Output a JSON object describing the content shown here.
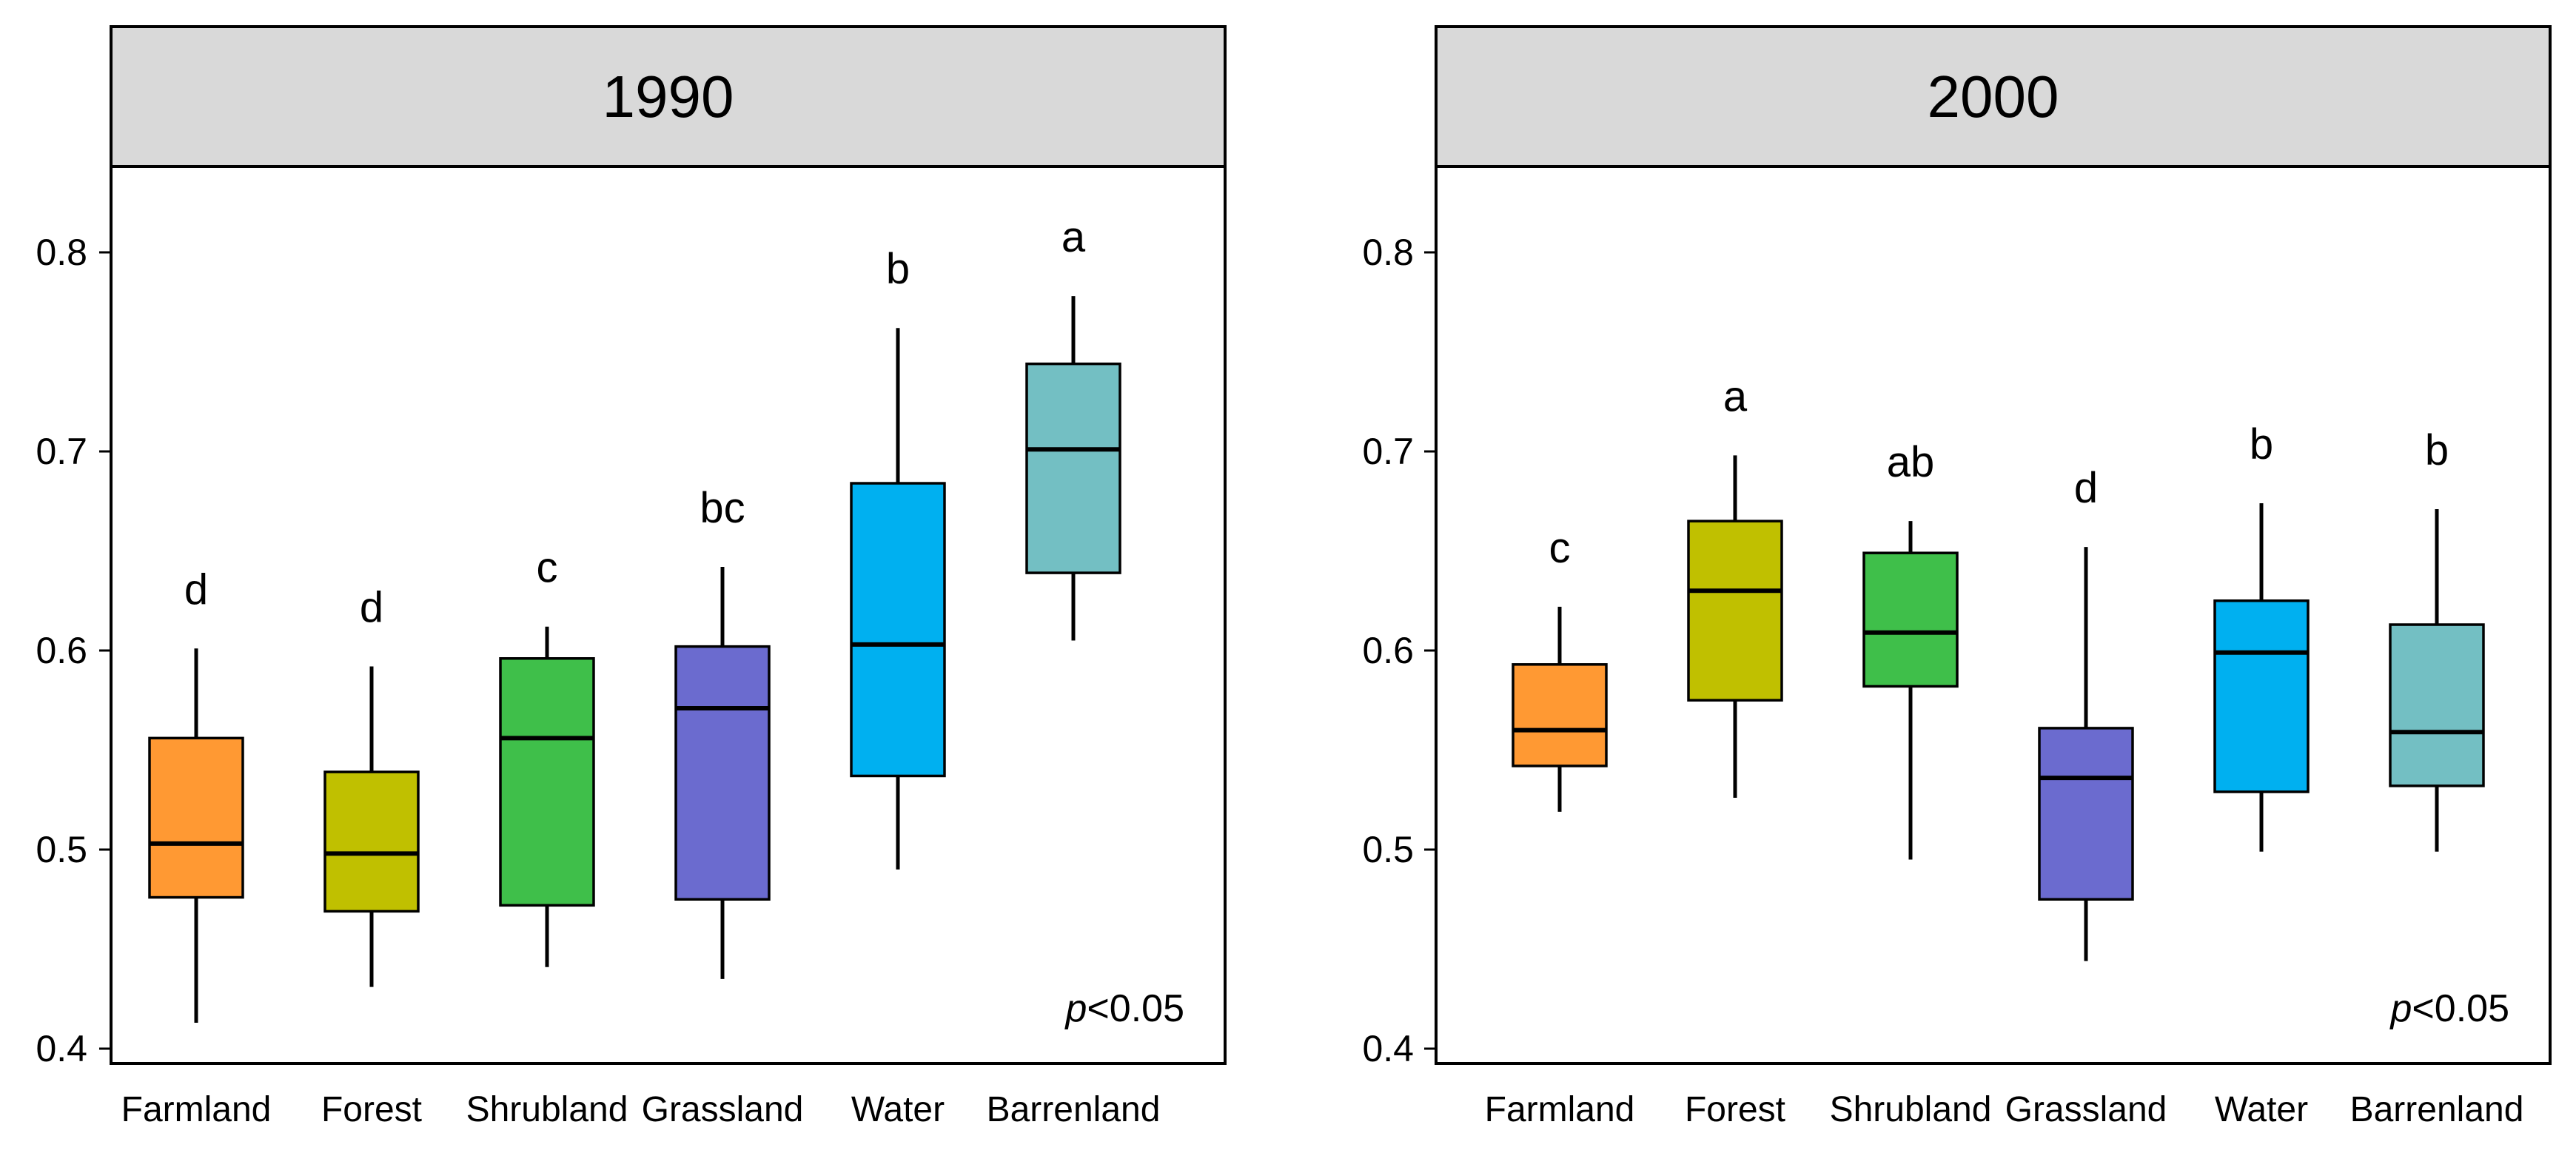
{
  "chart_data": [
    {
      "type": "boxplot",
      "title": "1990",
      "ylim": [
        0.4,
        0.84
      ],
      "yticks": [
        0.4,
        0.5,
        0.6,
        0.7,
        0.8
      ],
      "ytick_labels": [
        "0.4",
        "0.5",
        "0.6",
        "0.7",
        "0.8"
      ],
      "categories": [
        "Farmland",
        "Forest",
        "Shrubland",
        "Grassland",
        "Water",
        "Barrenland"
      ],
      "colors": [
        "#FF9933",
        "#C0C000",
        "#3FBF4A",
        "#6B6BCF",
        "#00B0F0",
        "#73BFC3"
      ],
      "boxes": [
        {
          "min": 0.413,
          "q1": 0.476,
          "median": 0.503,
          "q3": 0.556,
          "max": 0.601
        },
        {
          "min": 0.431,
          "q1": 0.469,
          "median": 0.498,
          "q3": 0.539,
          "max": 0.592
        },
        {
          "min": 0.441,
          "q1": 0.472,
          "median": 0.556,
          "q3": 0.596,
          "max": 0.612
        },
        {
          "min": 0.435,
          "q1": 0.475,
          "median": 0.571,
          "q3": 0.602,
          "max": 0.642
        },
        {
          "min": 0.49,
          "q1": 0.537,
          "median": 0.603,
          "q3": 0.684,
          "max": 0.762
        },
        {
          "min": 0.605,
          "q1": 0.639,
          "median": 0.701,
          "q3": 0.744,
          "max": 0.778
        }
      ],
      "group_letters": [
        "d",
        "d",
        "c",
        "bc",
        "b",
        "a"
      ],
      "annotation_prefix": "p",
      "annotation_suffix": "<0.05"
    },
    {
      "type": "boxplot",
      "title": "2000",
      "ylim": [
        0.4,
        0.84
      ],
      "yticks": [
        0.4,
        0.5,
        0.6,
        0.7,
        0.8
      ],
      "ytick_labels": [
        "0.4",
        "0.5",
        "0.6",
        "0.7",
        "0.8"
      ],
      "categories": [
        "Farmland",
        "Forest",
        "Shrubland",
        "Grassland",
        "Water",
        "Barrenland"
      ],
      "colors": [
        "#FF9933",
        "#C0C000",
        "#3FBF4A",
        "#6B6BCF",
        "#00B0F0",
        "#73BFC3"
      ],
      "boxes": [
        {
          "min": 0.519,
          "q1": 0.542,
          "median": 0.56,
          "q3": 0.593,
          "max": 0.622
        },
        {
          "min": 0.526,
          "q1": 0.575,
          "median": 0.63,
          "q3": 0.665,
          "max": 0.698
        },
        {
          "min": 0.495,
          "q1": 0.582,
          "median": 0.609,
          "q3": 0.649,
          "max": 0.665
        },
        {
          "min": 0.444,
          "q1": 0.475,
          "median": 0.536,
          "q3": 0.561,
          "max": 0.652
        },
        {
          "min": 0.499,
          "q1": 0.529,
          "median": 0.599,
          "q3": 0.625,
          "max": 0.674
        },
        {
          "min": 0.499,
          "q1": 0.532,
          "median": 0.559,
          "q3": 0.613,
          "max": 0.671
        }
      ],
      "group_letters": [
        "c",
        "a",
        "ab",
        "d",
        "b",
        "b"
      ],
      "annotation_prefix": "p",
      "annotation_suffix": "<0.05"
    }
  ]
}
